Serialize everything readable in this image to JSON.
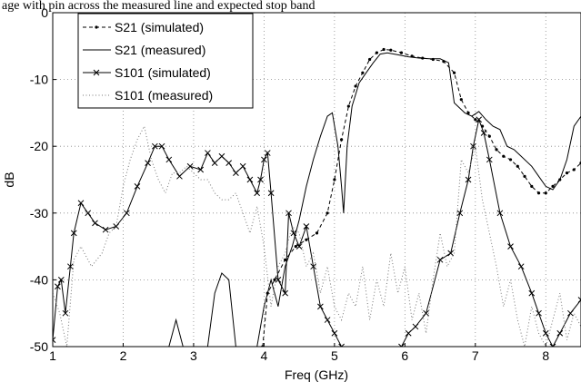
{
  "caption": "age with pin across the measured line and expected stop band",
  "chart_data": {
    "type": "line",
    "title": "",
    "xlabel": "Freq (GHz)",
    "ylabel": "dB",
    "xlim": [
      1,
      8.5
    ],
    "ylim": [
      -50,
      0
    ],
    "xticks": [
      1,
      2,
      3,
      4,
      5,
      6,
      7,
      8
    ],
    "yticks": [
      0,
      -10,
      -20,
      -30,
      -40,
      -50
    ],
    "grid": true,
    "legend_position": "top-left",
    "series": [
      {
        "name": "S21 (simulated)",
        "style": "dash-dot-dots",
        "points": [
          [
            3.98,
            -50
          ],
          [
            4.05,
            -42
          ],
          [
            4.15,
            -40
          ],
          [
            4.3,
            -37
          ],
          [
            4.45,
            -35
          ],
          [
            4.6,
            -34
          ],
          [
            4.75,
            -33
          ],
          [
            4.9,
            -30
          ],
          [
            5.0,
            -25
          ],
          [
            5.1,
            -19
          ],
          [
            5.2,
            -14
          ],
          [
            5.3,
            -11
          ],
          [
            5.4,
            -9
          ],
          [
            5.5,
            -7
          ],
          [
            5.6,
            -6
          ],
          [
            5.7,
            -5.5
          ],
          [
            5.8,
            -5.6
          ],
          [
            5.95,
            -6
          ],
          [
            6.1,
            -6.5
          ],
          [
            6.25,
            -6.8
          ],
          [
            6.4,
            -7
          ],
          [
            6.55,
            -7.3
          ],
          [
            6.7,
            -9
          ],
          [
            6.8,
            -13
          ],
          [
            6.9,
            -15
          ],
          [
            7.0,
            -16
          ],
          [
            7.1,
            -17
          ],
          [
            7.2,
            -18.5
          ],
          [
            7.3,
            -20.5
          ],
          [
            7.4,
            -21.5
          ],
          [
            7.5,
            -22
          ],
          [
            7.6,
            -23
          ],
          [
            7.7,
            -24.5
          ],
          [
            7.8,
            -26
          ],
          [
            7.9,
            -27
          ],
          [
            8.0,
            -27
          ],
          [
            8.1,
            -26
          ],
          [
            8.2,
            -25
          ],
          [
            8.3,
            -24
          ],
          [
            8.4,
            -23.5
          ],
          [
            8.5,
            -22.5
          ]
        ]
      },
      {
        "name": "S21 (measured)",
        "style": "solid",
        "points": [
          [
            2.65,
            -50
          ],
          [
            2.75,
            -46
          ],
          [
            2.85,
            -50
          ],
          [
            3.2,
            -50
          ],
          [
            3.3,
            -42
          ],
          [
            3.4,
            -39
          ],
          [
            3.5,
            -40
          ],
          [
            3.6,
            -50
          ],
          [
            3.9,
            -50
          ],
          [
            4.0,
            -44
          ],
          [
            4.1,
            -40
          ],
          [
            4.2,
            -44
          ],
          [
            4.3,
            -38
          ],
          [
            4.4,
            -35
          ],
          [
            4.5,
            -31
          ],
          [
            4.6,
            -26
          ],
          [
            4.7,
            -22
          ],
          [
            4.8,
            -18.5
          ],
          [
            4.9,
            -15.5
          ],
          [
            4.97,
            -15
          ],
          [
            5.05,
            -20
          ],
          [
            5.1,
            -26
          ],
          [
            5.13,
            -30
          ],
          [
            5.18,
            -20
          ],
          [
            5.25,
            -14
          ],
          [
            5.35,
            -10.5
          ],
          [
            5.45,
            -9
          ],
          [
            5.55,
            -7.5
          ],
          [
            5.65,
            -6.2
          ],
          [
            5.75,
            -6
          ],
          [
            5.9,
            -6.3
          ],
          [
            6.05,
            -6.6
          ],
          [
            6.2,
            -6.8
          ],
          [
            6.35,
            -6.9
          ],
          [
            6.5,
            -6.9
          ],
          [
            6.62,
            -7.5
          ],
          [
            6.7,
            -13.5
          ],
          [
            6.75,
            -14
          ],
          [
            6.85,
            -15
          ],
          [
            6.95,
            -15.5
          ],
          [
            7.05,
            -14.8
          ],
          [
            7.15,
            -16
          ],
          [
            7.25,
            -17
          ],
          [
            7.35,
            -17.5
          ],
          [
            7.45,
            -20
          ],
          [
            7.55,
            -20.5
          ],
          [
            7.65,
            -21.5
          ],
          [
            7.8,
            -23
          ],
          [
            7.9,
            -24.5
          ],
          [
            8.0,
            -26
          ],
          [
            8.1,
            -26.5
          ],
          [
            8.2,
            -25
          ],
          [
            8.3,
            -22
          ],
          [
            8.4,
            -17
          ],
          [
            8.5,
            -15.5
          ]
        ]
      },
      {
        "name": "S101 (simulated)",
        "style": "solid-with-x",
        "points": [
          [
            1.0,
            -49
          ],
          [
            1.07,
            -41
          ],
          [
            1.12,
            -40
          ],
          [
            1.18,
            -45
          ],
          [
            1.25,
            -38
          ],
          [
            1.3,
            -33
          ],
          [
            1.4,
            -28.5
          ],
          [
            1.5,
            -30
          ],
          [
            1.6,
            -31.5
          ],
          [
            1.75,
            -32.5
          ],
          [
            1.9,
            -32
          ],
          [
            2.05,
            -30
          ],
          [
            2.2,
            -26
          ],
          [
            2.35,
            -22.5
          ],
          [
            2.45,
            -20
          ],
          [
            2.55,
            -20
          ],
          [
            2.65,
            -22
          ],
          [
            2.8,
            -24.5
          ],
          [
            2.95,
            -23
          ],
          [
            3.1,
            -23.5
          ],
          [
            3.2,
            -21
          ],
          [
            3.3,
            -22.5
          ],
          [
            3.4,
            -21.5
          ],
          [
            3.5,
            -22.5
          ],
          [
            3.6,
            -24
          ],
          [
            3.7,
            -23
          ],
          [
            3.8,
            -25
          ],
          [
            3.9,
            -27
          ],
          [
            3.95,
            -25
          ],
          [
            4.0,
            -22
          ],
          [
            4.05,
            -21
          ],
          [
            4.1,
            -27
          ],
          [
            4.2,
            -40
          ],
          [
            4.3,
            -42
          ],
          [
            4.35,
            -30
          ],
          [
            4.42,
            -33
          ],
          [
            4.5,
            -35
          ],
          [
            4.6,
            -32
          ],
          [
            4.7,
            -38
          ],
          [
            4.8,
            -44
          ],
          [
            4.9,
            -46
          ],
          [
            5.0,
            -48
          ],
          [
            5.1,
            -50
          ],
          [
            5.95,
            -50
          ],
          [
            6.05,
            -48
          ],
          [
            6.15,
            -47
          ],
          [
            6.3,
            -45
          ],
          [
            6.5,
            -37
          ],
          [
            6.65,
            -36
          ],
          [
            6.78,
            -30
          ],
          [
            6.9,
            -25
          ],
          [
            6.97,
            -20
          ],
          [
            7.05,
            -16
          ],
          [
            7.12,
            -18
          ],
          [
            7.2,
            -22
          ],
          [
            7.35,
            -30
          ],
          [
            7.5,
            -35
          ],
          [
            7.65,
            -38
          ],
          [
            7.8,
            -42
          ],
          [
            7.9,
            -45
          ],
          [
            8.0,
            -48
          ],
          [
            8.1,
            -50
          ],
          [
            8.2,
            -48
          ],
          [
            8.35,
            -45
          ],
          [
            8.5,
            -43
          ]
        ]
      },
      {
        "name": "S101 (measured)",
        "style": "dotted",
        "points": [
          [
            1.0,
            -42
          ],
          [
            1.1,
            -45
          ],
          [
            1.2,
            -50
          ],
          [
            1.3,
            -37
          ],
          [
            1.4,
            -35
          ],
          [
            1.55,
            -38
          ],
          [
            1.7,
            -36
          ],
          [
            1.8,
            -33
          ],
          [
            1.9,
            -32
          ],
          [
            2.0,
            -26
          ],
          [
            2.1,
            -22
          ],
          [
            2.2,
            -19
          ],
          [
            2.3,
            -17
          ],
          [
            2.4,
            -22
          ],
          [
            2.5,
            -25
          ],
          [
            2.6,
            -27
          ],
          [
            2.7,
            -24
          ],
          [
            2.8,
            -24
          ],
          [
            2.9,
            -23
          ],
          [
            3.0,
            -24
          ],
          [
            3.1,
            -25
          ],
          [
            3.2,
            -25
          ],
          [
            3.3,
            -27
          ],
          [
            3.4,
            -28
          ],
          [
            3.5,
            -28
          ],
          [
            3.6,
            -27
          ],
          [
            3.7,
            -30
          ],
          [
            3.8,
            -33
          ],
          [
            3.9,
            -29
          ],
          [
            4.0,
            -35
          ],
          [
            4.1,
            -44
          ],
          [
            4.2,
            -38
          ],
          [
            4.3,
            -36
          ],
          [
            4.4,
            -32
          ],
          [
            4.5,
            -33
          ],
          [
            4.6,
            -38
          ],
          [
            4.7,
            -36
          ],
          [
            4.8,
            -42
          ],
          [
            4.9,
            -38
          ],
          [
            5.0,
            -44
          ],
          [
            5.1,
            -46
          ],
          [
            5.2,
            -42
          ],
          [
            5.3,
            -44
          ],
          [
            5.4,
            -38
          ],
          [
            5.5,
            -46
          ],
          [
            5.6,
            -40
          ],
          [
            5.7,
            -44
          ],
          [
            5.8,
            -36
          ],
          [
            5.9,
            -42
          ],
          [
            6.0,
            -38
          ],
          [
            6.1,
            -46
          ],
          [
            6.2,
            -42
          ],
          [
            6.3,
            -48
          ],
          [
            6.4,
            -40
          ],
          [
            6.5,
            -33
          ],
          [
            6.6,
            -38
          ],
          [
            6.7,
            -36
          ],
          [
            6.8,
            -22
          ],
          [
            6.9,
            -24
          ],
          [
            7.0,
            -20
          ],
          [
            7.1,
            -28
          ],
          [
            7.2,
            -33
          ],
          [
            7.3,
            -38
          ],
          [
            7.4,
            -44
          ],
          [
            7.5,
            -40
          ],
          [
            7.6,
            -46
          ],
          [
            7.7,
            -50
          ],
          [
            7.8,
            -44
          ],
          [
            7.9,
            -48
          ],
          [
            8.0,
            -50
          ],
          [
            8.1,
            -46
          ],
          [
            8.2,
            -42
          ],
          [
            8.3,
            -49
          ],
          [
            8.4,
            -45
          ],
          [
            8.5,
            -47
          ]
        ]
      }
    ]
  }
}
